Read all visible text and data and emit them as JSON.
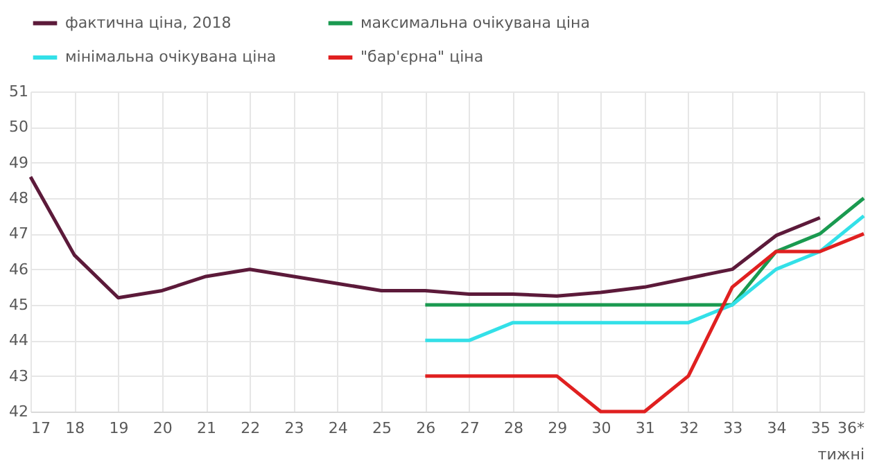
{
  "chart_data": {
    "type": "line",
    "xlabel": "тижні",
    "categories": [
      "17",
      "18",
      "19",
      "20",
      "21",
      "22",
      "23",
      "24",
      "25",
      "26",
      "27",
      "28",
      "29",
      "30",
      "31",
      "32",
      "33",
      "34",
      "35",
      "36*"
    ],
    "ylim": [
      42,
      51
    ],
    "yticks": [
      42,
      43,
      44,
      45,
      46,
      47,
      48,
      49,
      50,
      51
    ],
    "grid": true,
    "legend": "top",
    "marker": "none",
    "line_style": "solid",
    "series": [
      {
        "name": "фактична ціна, 2018",
        "color": "#5c1a3a",
        "values": [
          48.6,
          46.4,
          45.2,
          45.4,
          45.8,
          46.0,
          45.8,
          45.6,
          45.4,
          45.4,
          45.3,
          45.3,
          45.25,
          45.35,
          45.5,
          45.75,
          46.0,
          46.95,
          47.45,
          null
        ]
      },
      {
        "name": "максимальна очікувана ціна",
        "color": "#1a9a50",
        "values": [
          null,
          null,
          null,
          null,
          null,
          null,
          null,
          null,
          null,
          45.0,
          45.0,
          45.0,
          45.0,
          45.0,
          45.0,
          45.0,
          45.0,
          46.5,
          47.0,
          48.0
        ]
      },
      {
        "name": "мінімальна очікувана ціна",
        "color": "#33e0e8",
        "values": [
          null,
          null,
          null,
          null,
          null,
          null,
          null,
          null,
          null,
          44.0,
          44.0,
          44.5,
          44.5,
          44.5,
          44.5,
          44.5,
          45.0,
          46.0,
          46.5,
          47.5
        ]
      },
      {
        "name": "\"бар'єрна\" ціна",
        "color": "#e02020",
        "values": [
          null,
          null,
          null,
          null,
          null,
          null,
          null,
          null,
          null,
          43,
          43,
          43,
          43,
          42,
          42,
          43,
          45.5,
          46.5,
          46.5,
          47.0
        ]
      }
    ]
  }
}
